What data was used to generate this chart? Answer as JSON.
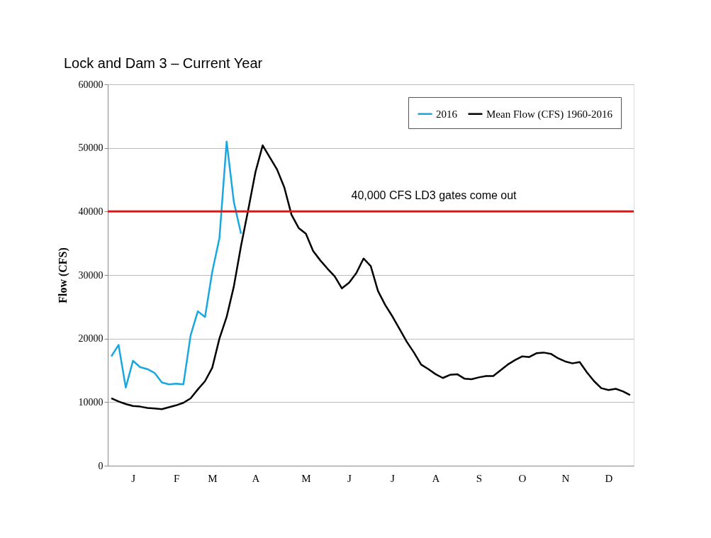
{
  "chart_data": {
    "type": "line",
    "title": "Lock and Dam 3 – Current Year",
    "ylabel": "Flow (CFS)",
    "categories": [
      null,
      null,
      null,
      "J",
      null,
      null,
      null,
      null,
      null,
      "F",
      null,
      null,
      null,
      null,
      "M",
      null,
      null,
      null,
      null,
      null,
      "A",
      null,
      null,
      null,
      null,
      null,
      null,
      "M",
      null,
      null,
      null,
      null,
      null,
      "J",
      null,
      null,
      null,
      null,
      null,
      "J",
      null,
      null,
      null,
      null,
      null,
      "A",
      null,
      null,
      null,
      null,
      null,
      "S",
      null,
      null,
      null,
      null,
      null,
      "O",
      null,
      null,
      null,
      null,
      null,
      "N",
      null,
      null,
      null,
      null,
      null,
      "D",
      null,
      null,
      null
    ],
    "series": [
      {
        "name": "2016",
        "color": "#1aa7e0",
        "values": [
          17200,
          19000,
          12300,
          16500,
          15500,
          15200,
          14600,
          13100,
          12800,
          12900,
          12800,
          20500,
          24300,
          23400,
          30500,
          35800,
          51000,
          41500,
          36500,
          null,
          null,
          null,
          null,
          null,
          null,
          null,
          null,
          null,
          null,
          null,
          null,
          null,
          null,
          null,
          null,
          null,
          null,
          null,
          null,
          null,
          null,
          null,
          null,
          null,
          null,
          null,
          null,
          null,
          null,
          null,
          null,
          null,
          null,
          null,
          null,
          null,
          null,
          null,
          null,
          null,
          null,
          null,
          null,
          null,
          null,
          null,
          null,
          null,
          null,
          null,
          null,
          null,
          null
        ]
      },
      {
        "name": "Mean Flow (CFS) 1960-2016",
        "color": "#000000",
        "values": [
          10600,
          10100,
          9700,
          9400,
          9300,
          9100,
          9000,
          8900,
          9200,
          9500,
          9900,
          10600,
          12000,
          13300,
          15400,
          20000,
          23400,
          28200,
          34600,
          40300,
          46200,
          50400,
          48500,
          46600,
          43800,
          39500,
          37400,
          36500,
          33800,
          32300,
          31000,
          29800,
          27900,
          28800,
          30300,
          32600,
          31400,
          27500,
          25300,
          23500,
          21500,
          19500,
          17800,
          15900,
          15200,
          14400,
          13800,
          14300,
          14400,
          13700,
          13600,
          13900,
          14100,
          14100,
          15000,
          15900,
          16600,
          17200,
          17100,
          17700,
          17800,
          17600,
          16900,
          16400,
          16100,
          16300,
          14700,
          13300,
          12200,
          11900,
          12100,
          11700,
          11100
        ]
      }
    ],
    "ylim": [
      0,
      60000
    ],
    "yticks": [
      0,
      10000,
      20000,
      30000,
      40000,
      50000,
      60000
    ],
    "ref_lines": [
      {
        "axis": "y",
        "value": 40000,
        "label": "40,000 CFS LD3 gates come out",
        "color": "#ee1111"
      }
    ],
    "grid": "y",
    "legend": "top right",
    "marker": "none",
    "line_style": "solid"
  }
}
